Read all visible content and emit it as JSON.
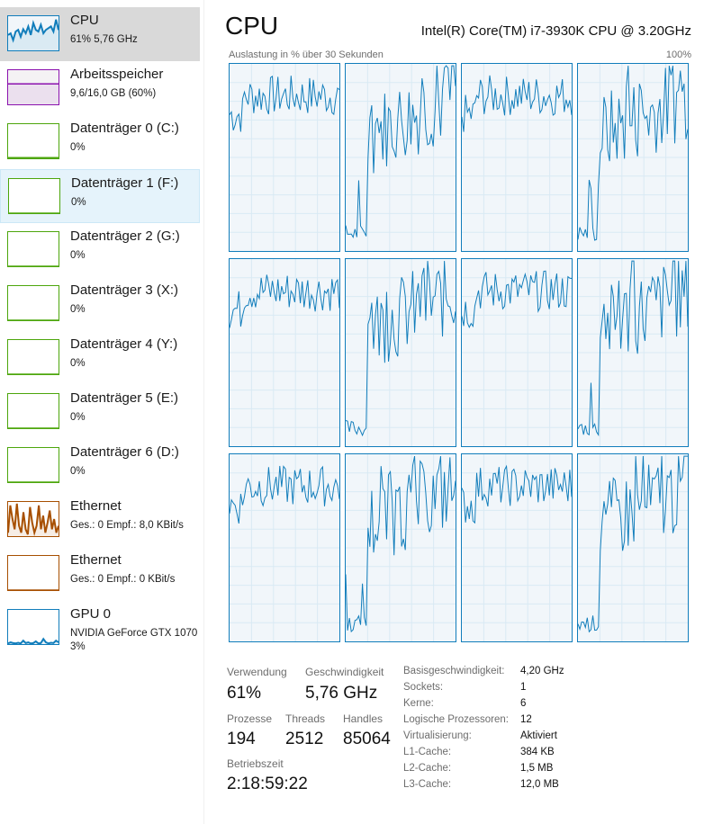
{
  "sidebar": {
    "items": [
      {
        "title": "CPU",
        "sub": "61% 5,76 GHz",
        "color": "#117dbb",
        "fill": "#f1f6fa",
        "state": "selected",
        "graph": [
          0.45,
          0.5,
          0.3,
          0.55,
          0.6,
          0.4,
          0.62,
          0.5,
          0.7,
          0.45,
          0.8,
          0.6,
          0.55,
          0.75,
          0.5,
          0.6,
          0.65,
          0.7,
          0.55,
          0.9,
          0.6
        ]
      },
      {
        "title": "Arbeitsspeicher",
        "sub": "9,6/16,0 GB (60%)",
        "color": "#8b12ae",
        "fill": "#f4f2f4",
        "state": "",
        "level": 0.6
      },
      {
        "title": "Datenträger 0 (C:)",
        "sub": "0%",
        "color": "#4da60c",
        "fill": "#ffffff",
        "state": "",
        "level": 0.02
      },
      {
        "title": "Datenträger 1 (F:)",
        "sub": "0%",
        "color": "#4da60c",
        "fill": "#ffffff",
        "state": "hover",
        "level": 0
      },
      {
        "title": "Datenträger 2 (G:)",
        "sub": "0%",
        "color": "#4da60c",
        "fill": "#ffffff",
        "state": "",
        "level": 0
      },
      {
        "title": "Datenträger 3 (X:)",
        "sub": "0%",
        "color": "#4da60c",
        "fill": "#ffffff",
        "state": "",
        "level": 0
      },
      {
        "title": "Datenträger 4 (Y:)",
        "sub": "0%",
        "color": "#4da60c",
        "fill": "#ffffff",
        "state": "",
        "level": 0
      },
      {
        "title": "Datenträger 5 (E:)",
        "sub": "0%",
        "color": "#4da60c",
        "fill": "#ffffff",
        "state": "",
        "level": 0
      },
      {
        "title": "Datenträger 6 (D:)",
        "sub": "0%",
        "color": "#4da60c",
        "fill": "#ffffff",
        "state": "",
        "level": 0
      },
      {
        "title": "Ethernet",
        "sub": "Ges.: 0 Empf.: 8,0 KBit/s",
        "color": "#a74f01",
        "fill": "#ffffff",
        "state": "",
        "graph": [
          0.1,
          0.9,
          0.5,
          0.2,
          0.95,
          0.3,
          0.1,
          0.7,
          0.2,
          0.05,
          0.85,
          0.4,
          0.1,
          0.3,
          0.9,
          0.2,
          0.6,
          0.1,
          0.4,
          0.75,
          0.2,
          0.5,
          0.1,
          0.3
        ]
      },
      {
        "title": "Ethernet",
        "sub": "Ges.: 0 Empf.: 0 KBit/s",
        "color": "#a74f01",
        "fill": "#ffffff",
        "state": "",
        "level": 0
      },
      {
        "title": "GPU 0",
        "sub": "NVIDIA GeForce GTX 1070\n3%",
        "color": "#117dbb",
        "fill": "#ffffff",
        "state": "",
        "graph": [
          0.02,
          0.05,
          0.03,
          0.02,
          0.04,
          0.02,
          0.1,
          0.03,
          0.05,
          0.02,
          0.03,
          0.08,
          0.02,
          0.03,
          0.15,
          0.05,
          0.02,
          0.04,
          0.03,
          0.1,
          0.05
        ]
      }
    ]
  },
  "main": {
    "title": "CPU",
    "model": "Intel(R) Core(TM) i7-3930K CPU @ 3.20GHz",
    "graph_label": "Auslastung in % über 30 Sekunden",
    "graph_max": "100%",
    "core_count": 12
  },
  "stats": {
    "usage_label": "Verwendung",
    "usage_value": "61%",
    "speed_label": "Geschwindigkeit",
    "speed_value": "5,76 GHz",
    "processes_label": "Prozesse",
    "processes_value": "194",
    "threads_label": "Threads",
    "threads_value": "2512",
    "handles_label": "Handles",
    "handles_value": "85064",
    "uptime_label": "Betriebszeit",
    "uptime_value": "2:18:59:22"
  },
  "specs": [
    {
      "label": "Basisgeschwindigkeit:",
      "value": "4,20 GHz"
    },
    {
      "label": "Sockets:",
      "value": "1"
    },
    {
      "label": "Kerne:",
      "value": "6"
    },
    {
      "label": "Logische Prozessoren:",
      "value": "12"
    },
    {
      "label": "Virtualisierung:",
      "value": "Aktiviert"
    },
    {
      "label": "L1-Cache:",
      "value": "384 KB"
    },
    {
      "label": "L2-Cache:",
      "value": "1,5 MB"
    },
    {
      "label": "L3-Cache:",
      "value": "12,0 MB"
    }
  ],
  "colors": {
    "cpu": "#117dbb",
    "cpu_fill": "#f1f6fa",
    "grid": "#d9eaf4"
  }
}
